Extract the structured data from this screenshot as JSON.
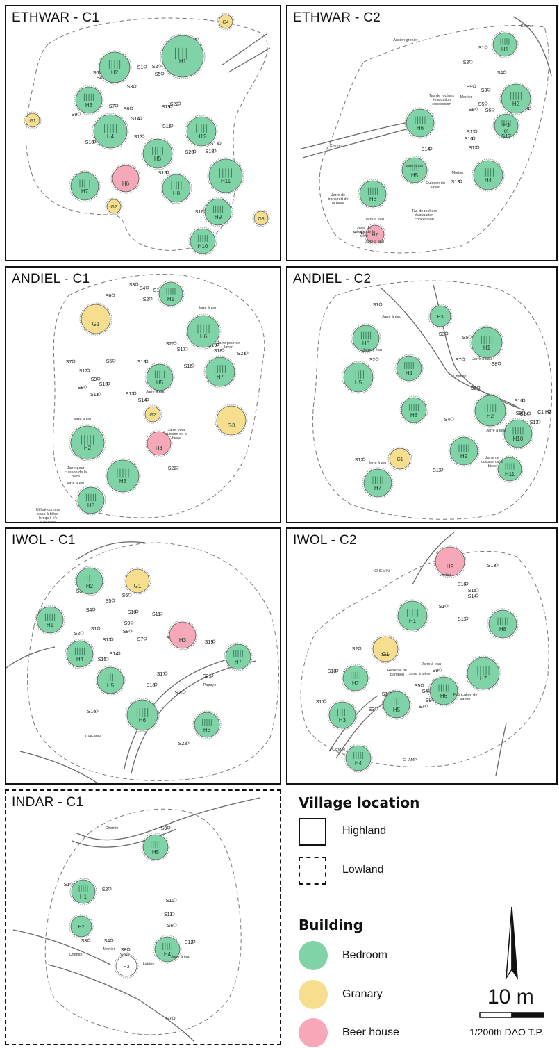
{
  "colors": {
    "bedroom": "#7fd3a6",
    "granary": "#f7de8f",
    "beer_house": "#f6a8b8",
    "outline": "#555555"
  },
  "panels": [
    {
      "id": "ethwar-c1",
      "title": "ETHWAR - C1",
      "buildings": [
        {
          "label": "H1",
          "type": "bedroom"
        },
        {
          "label": "H2",
          "type": "bedroom"
        },
        {
          "label": "H3",
          "type": "bedroom"
        },
        {
          "label": "H4",
          "type": "bedroom"
        },
        {
          "label": "H5",
          "type": "bedroom"
        },
        {
          "label": "H6",
          "type": "beer_house"
        },
        {
          "label": "H7",
          "type": "bedroom"
        },
        {
          "label": "H8",
          "type": "bedroom"
        },
        {
          "label": "H9",
          "type": "bedroom"
        },
        {
          "label": "H10",
          "type": "bedroom"
        },
        {
          "label": "H11",
          "type": "bedroom"
        },
        {
          "label": "H12",
          "type": "bedroom"
        },
        {
          "label": "G1",
          "type": "granary"
        },
        {
          "label": "G2",
          "type": "granary"
        },
        {
          "label": "G3",
          "type": "granary"
        },
        {
          "label": "G4",
          "type": "granary"
        }
      ],
      "structures": [
        "S1",
        "S2",
        "S3",
        "S4",
        "S5",
        "S6",
        "S7",
        "S8",
        "S9",
        "S10",
        "S11",
        "S13",
        "S14",
        "S15",
        "S16",
        "S17",
        "S18",
        "S19",
        "S20",
        "S21",
        "S22"
      ]
    },
    {
      "id": "ethwar-c2",
      "title": "ETHWAR - C2",
      "buildings": [
        {
          "label": "H1",
          "type": "bedroom"
        },
        {
          "label": "H2",
          "type": "bedroom"
        },
        {
          "label": "H3 et S17",
          "type": "bedroom"
        },
        {
          "label": "H4",
          "type": "bedroom"
        },
        {
          "label": "H5",
          "type": "bedroom"
        },
        {
          "label": "H6",
          "type": "bedroom"
        },
        {
          "label": "H7",
          "type": "beer_house"
        },
        {
          "label": "H8",
          "type": "bedroom"
        }
      ],
      "structures": [
        "S1",
        "S2",
        "S3",
        "S4",
        "S5",
        "S6",
        "S8",
        "S9",
        "S10",
        "S11",
        "S12",
        "S13",
        "S14",
        "S15",
        "S16"
      ],
      "annotations": [
        "Chemin",
        "Chemin",
        "Ancien grenier",
        "Tas de rochers évacuation concession",
        "Mortier",
        "Jarre à eau",
        "Cuisson du savon",
        "Mortier",
        "Tas de rochers évacuation concession",
        "Jarre de transport de la bière",
        "Jarre à eau",
        "Jarre de cuisson de la bière",
        "Jarre à eau"
      ]
    },
    {
      "id": "andiel-c1",
      "title": "ANDIEL - C1",
      "buildings": [
        {
          "label": "H1",
          "type": "bedroom"
        },
        {
          "label": "H2",
          "type": "bedroom"
        },
        {
          "label": "H3",
          "type": "bedroom"
        },
        {
          "label": "H4",
          "type": "beer_house"
        },
        {
          "label": "H5",
          "type": "bedroom"
        },
        {
          "label": "H6",
          "type": "bedroom"
        },
        {
          "label": "H7",
          "type": "bedroom"
        },
        {
          "label": "H8",
          "type": "bedroom"
        },
        {
          "label": "G1",
          "type": "granary"
        },
        {
          "label": "G2",
          "type": "granary"
        },
        {
          "label": "G3",
          "type": "granary"
        }
      ],
      "structures": [
        "S1",
        "S2",
        "S3",
        "S4",
        "S5",
        "S6",
        "S7",
        "S8",
        "S9",
        "S10",
        "S11",
        "S12",
        "S13",
        "S14",
        "S15",
        "S16",
        "S17",
        "S18",
        "S19",
        "S20",
        "S21",
        "S22"
      ],
      "annotations": [
        "Jarre à eau",
        "Jarre pour se laver",
        "Jarre à eau",
        "Jarre à eau",
        "Jarre pour cuisson de la bière",
        "Jarre pour cuisson de la bière",
        "Jarre à eau",
        "Utilisé comme case à bière lorsqu'il n'y a plus de place"
      ]
    },
    {
      "id": "andiel-c2",
      "title": "ANDIEL - C2",
      "buildings": [
        {
          "label": "H1",
          "type": "bedroom"
        },
        {
          "label": "H2",
          "type": "bedroom"
        },
        {
          "label": "H3",
          "type": "bedroom"
        },
        {
          "label": "H4",
          "type": "bedroom"
        },
        {
          "label": "H5",
          "type": "bedroom"
        },
        {
          "label": "H6",
          "type": "bedroom"
        },
        {
          "label": "H7",
          "type": "bedroom"
        },
        {
          "label": "H8",
          "type": "bedroom"
        },
        {
          "label": "H9",
          "type": "bedroom"
        },
        {
          "label": "H10",
          "type": "bedroom"
        },
        {
          "label": "H11",
          "type": "bedroom"
        },
        {
          "label": "G1",
          "type": "granary"
        }
      ],
      "structures": [
        "S1",
        "S2",
        "S3",
        "S4",
        "S5",
        "S6",
        "S7",
        "S8",
        "S9",
        "S10",
        "S11",
        "S12",
        "S13",
        "S14",
        "C1 H2"
      ],
      "annotations": [
        "Chemin",
        "Jarre à eau",
        "Jarre à eau",
        "Jarre à eau",
        "Jarre à eau",
        "Jarre à eau",
        "Jarre de cuisson de la bière"
      ]
    },
    {
      "id": "iwol-c1",
      "title": "IWOL - C1",
      "buildings": [
        {
          "label": "H1",
          "type": "bedroom"
        },
        {
          "label": "H2",
          "type": "bedroom"
        },
        {
          "label": "H3",
          "type": "beer_house"
        },
        {
          "label": "H4",
          "type": "bedroom"
        },
        {
          "label": "H5",
          "type": "bedroom"
        },
        {
          "label": "H6",
          "type": "bedroom"
        },
        {
          "label": "H7",
          "type": "bedroom"
        },
        {
          "label": "H8",
          "type": "bedroom"
        },
        {
          "label": "G1",
          "type": "granary"
        }
      ],
      "structures": [
        "S1",
        "S2",
        "S3",
        "S4",
        "S5",
        "S6",
        "S7",
        "S8",
        "S9",
        "S10",
        "S11",
        "S12",
        "S13",
        "S14",
        "S15",
        "S16",
        "S17",
        "S18",
        "S19",
        "S20",
        "S21",
        "S22"
      ],
      "annotations": [
        "CHEMIN",
        "Papaye"
      ]
    },
    {
      "id": "iwol-c2",
      "title": "IWOL - C2",
      "buildings": [
        {
          "label": "H1",
          "type": "bedroom"
        },
        {
          "label": "H2",
          "type": "bedroom"
        },
        {
          "label": "H3",
          "type": "bedroom"
        },
        {
          "label": "H4",
          "type": "bedroom"
        },
        {
          "label": "H5",
          "type": "bedroom"
        },
        {
          "label": "H6",
          "type": "bedroom"
        },
        {
          "label": "H7",
          "type": "bedroom"
        },
        {
          "label": "H8",
          "type": "bedroom"
        },
        {
          "label": "H9",
          "type": "beer_house"
        },
        {
          "label": "G1",
          "type": "granary"
        }
      ],
      "structures": [
        "S1",
        "S2",
        "S3",
        "S4",
        "S5",
        "S6",
        "S7",
        "S8",
        "S9",
        "S10",
        "S11",
        "S12",
        "S13",
        "S14",
        "S15",
        "S16",
        "S17",
        "S18"
      ],
      "annotations": [
        "CHEMIN",
        "Mortier",
        "Réserve de bambou",
        "Jarre à eau",
        "Jarre à bière",
        "Fabrication de savon",
        "CHEMIN",
        "CHAMP",
        "Coton"
      ]
    },
    {
      "id": "indar-c1",
      "title": "INDAR - C1",
      "buildings": [
        {
          "label": "H1",
          "type": "bedroom"
        },
        {
          "label": "H2",
          "type": "bedroom"
        },
        {
          "label": "H3",
          "type": "plain"
        },
        {
          "label": "H4",
          "type": "bedroom"
        },
        {
          "label": "H5",
          "type": "bedroom"
        }
      ],
      "structures": [
        "S1",
        "S2",
        "S3",
        "S4",
        "S5",
        "S6",
        "S7",
        "S8",
        "S9",
        "S10",
        "S11",
        "S12"
      ],
      "annotations": [
        "Chemin",
        "Chemin",
        "Mortier",
        "Latrine",
        "Jarre à eau"
      ]
    }
  ],
  "legend": {
    "village_location_title": "Village location",
    "highland": "Highland",
    "lowland": "Lowland",
    "building_title": "Building",
    "bedroom": "Bedroom",
    "granary": "Granary",
    "beer_house": "Beer house"
  },
  "scale": {
    "label": "10 m",
    "caption": "1/200th DAO T.P."
  }
}
